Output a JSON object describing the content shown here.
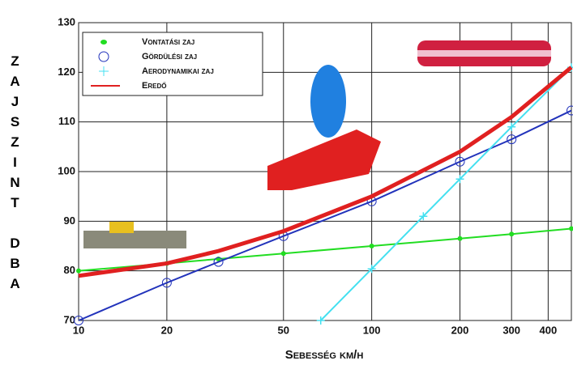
{
  "chart_data": {
    "type": "line",
    "xlabel": "Sebesség km/h",
    "ylabel": "ZAJSZINT DBA",
    "xlim": [
      10,
      480
    ],
    "ylim": [
      70,
      130
    ],
    "xscale": "log",
    "xticks": [
      10,
      20,
      50,
      100,
      200,
      300,
      400
    ],
    "yticks": [
      70,
      80,
      90,
      100,
      110,
      120,
      130
    ],
    "grid": true,
    "legend": "upper left",
    "series": [
      {
        "name": "Vontatási zaj",
        "color": "#22dd22",
        "marker": "dot",
        "x": [
          10,
          20,
          30,
          50,
          100,
          200,
          300,
          480
        ],
        "values": [
          80,
          81.5,
          82.4,
          83.5,
          85,
          86.5,
          87.4,
          88.5
        ]
      },
      {
        "name": "Gördülési zaj",
        "color": "#2233bb",
        "marker": "circle",
        "x": [
          10,
          20,
          30,
          50,
          100,
          200,
          300,
          480
        ],
        "values": [
          70,
          77.6,
          81.8,
          87,
          94,
          102,
          106.5,
          112.3
        ]
      },
      {
        "name": "Aerodynamikai zaj",
        "color": "#44e0f0",
        "marker": "plus",
        "x": [
          67,
          100,
          150,
          200,
          300,
          480
        ],
        "values": [
          70,
          80.4,
          91,
          98.5,
          109,
          121
        ]
      },
      {
        "name": "Eredő",
        "color": "#e02020",
        "marker": "none",
        "x": [
          10,
          20,
          30,
          50,
          100,
          200,
          300,
          480
        ],
        "values": [
          79,
          81.5,
          84,
          88,
          95,
          104,
          111,
          121
        ]
      }
    ]
  }
}
